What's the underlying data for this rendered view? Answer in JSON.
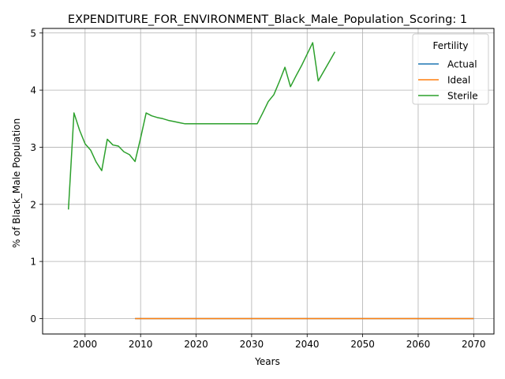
{
  "chart_data": {
    "type": "line",
    "title": "EXPENDITURE_FOR_ENVIRONMENT_Black_Male_Population_Scoring: 1",
    "xlabel": "Years",
    "ylabel": "% of Black_Male Population",
    "xlim": [
      1992.35,
      2073.65
    ],
    "ylim": [
      -0.27,
      5.08
    ],
    "xticks": [
      2000,
      2010,
      2020,
      2030,
      2040,
      2050,
      2060,
      2070
    ],
    "xtick_labels": [
      "2000",
      "2010",
      "2020",
      "2030",
      "2040",
      "2050",
      "2060",
      "2070"
    ],
    "yticks": [
      0,
      1,
      2,
      3,
      4,
      5
    ],
    "ytick_labels": [
      "0",
      "1",
      "2",
      "3",
      "4",
      "5"
    ],
    "grid": true,
    "legend": {
      "title": "Fertility",
      "placement": "top-right"
    },
    "series": [
      {
        "name": "Actual",
        "color": "#1f77b4",
        "x": [
          2009,
          2070
        ],
        "y": [
          0,
          0
        ]
      },
      {
        "name": "Ideal",
        "color": "#ff7f0e",
        "x": [
          2009,
          2070
        ],
        "y": [
          0,
          0
        ]
      },
      {
        "name": "Sterile",
        "color": "#2ca02c",
        "x": [
          1997,
          1998,
          1999,
          2000,
          2001,
          2002,
          2003,
          2004,
          2005,
          2006,
          2007,
          2008,
          2009,
          2010,
          2011,
          2012,
          2013,
          2014,
          2015,
          2016,
          2017,
          2018,
          2019,
          2020,
          2021,
          2022,
          2023,
          2024,
          2025,
          2026,
          2027,
          2028,
          2029,
          2030,
          2031,
          2032,
          2033,
          2034,
          2035,
          2036,
          2037,
          2038,
          2039,
          2040,
          2041,
          2042,
          2043,
          2044,
          2045
        ],
        "y": [
          1.91,
          3.6,
          3.3,
          3.06,
          2.95,
          2.74,
          2.59,
          3.14,
          3.04,
          3.02,
          2.92,
          2.87,
          2.75,
          3.16,
          3.6,
          3.55,
          3.52,
          3.5,
          3.47,
          3.45,
          3.43,
          3.41,
          3.41,
          3.41,
          3.41,
          3.41,
          3.41,
          3.41,
          3.41,
          3.41,
          3.41,
          3.41,
          3.41,
          3.41,
          3.41,
          3.6,
          3.8,
          3.92,
          4.15,
          4.4,
          4.06,
          4.25,
          4.43,
          4.63,
          4.83,
          4.16,
          4.33,
          4.5,
          4.67
        ]
      }
    ]
  }
}
